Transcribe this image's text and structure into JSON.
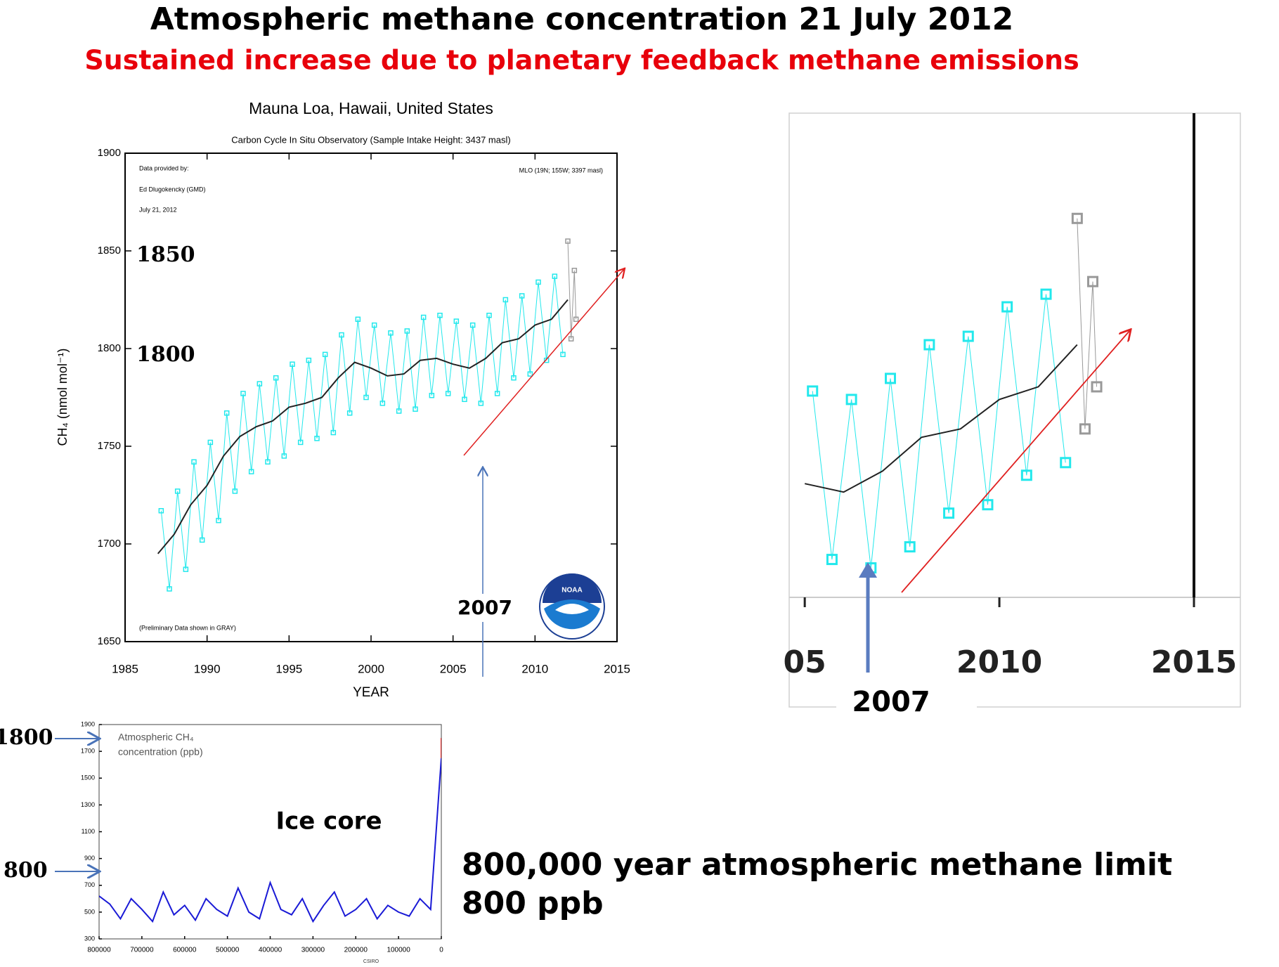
{
  "title": "Atmospheric methane concentration  21 July 2012",
  "subtitle": "Sustained increase due to planetary feedback methane emissions",
  "footer": [
    "800,000 year atmospheric methane limit",
    "800 ppb"
  ],
  "chart_data": [
    {
      "type": "line",
      "title": "Mauna Loa, Hawaii, United States",
      "subtitle": "Carbon Cycle In Situ Observatory (Sample Intake Height: 3437 masl)",
      "notes": [
        "Data provided by:",
        "Ed Dlugokencky (GMD)",
        "July 21, 2012",
        "MLO (19N; 155W; 3397 masl)",
        "(Preliminary Data shown in GRAY)"
      ],
      "annotations": [
        "1850",
        "1800",
        "2007"
      ],
      "xlabel": "YEAR",
      "ylabel": "CH₄ (nmol mol⁻¹)",
      "xlim": [
        1985,
        2015
      ],
      "xticks": [
        1985,
        1990,
        1995,
        2000,
        2005,
        2010,
        2015
      ],
      "ylim": [
        1650,
        1900
      ],
      "yticks": [
        1650,
        1700,
        1750,
        1800,
        1850,
        1900
      ],
      "series": [
        {
          "color": "#22e8ec",
          "mode": "lines+markers",
          "x": [
            1987.2,
            1987.7,
            1988.2,
            1988.7,
            1989.2,
            1989.7,
            1990.2,
            1990.7,
            1991.2,
            1991.7,
            1992.2,
            1992.7,
            1993.2,
            1993.7,
            1994.2,
            1994.7,
            1995.2,
            1995.7,
            1996.2,
            1996.7,
            1997.2,
            1997.7,
            1998.2,
            1998.7,
            1999.2,
            1999.7,
            2000.2,
            2000.7,
            2001.2,
            2001.7,
            2002.2,
            2002.7,
            2003.2,
            2003.7,
            2004.2,
            2004.7,
            2005.2,
            2005.7,
            2006.2,
            2006.7,
            2007.2,
            2007.7,
            2008.2,
            2008.7,
            2009.2,
            2009.7,
            2010.2,
            2010.7,
            2011.2,
            2011.7
          ],
          "values": [
            1717,
            1677,
            1727,
            1687,
            1742,
            1702,
            1752,
            1712,
            1767,
            1727,
            1777,
            1737,
            1782,
            1742,
            1785,
            1745,
            1792,
            1752,
            1794,
            1754,
            1797,
            1757,
            1807,
            1767,
            1815,
            1775,
            1812,
            1772,
            1808,
            1768,
            1809,
            1769,
            1816,
            1776,
            1817,
            1777,
            1814,
            1774,
            1812,
            1772,
            1817,
            1777,
            1825,
            1785,
            1827,
            1787,
            1834,
            1794,
            1837,
            1797
          ]
        },
        {
          "color": "#999999",
          "mode": "lines+markers",
          "x": [
            2012.0,
            2012.2,
            2012.4,
            2012.5
          ],
          "values": [
            1855,
            1805,
            1840,
            1815
          ]
        },
        {
          "color": "#222222",
          "mode": "lines",
          "x": [
            1987,
            1988,
            1989,
            1990,
            1991,
            1992,
            1993,
            1994,
            1995,
            1996,
            1997,
            1998,
            1999,
            2000,
            2001,
            2002,
            2003,
            2004,
            2005,
            2006,
            2007,
            2008,
            2009,
            2010,
            2011,
            2012
          ],
          "values": [
            1695,
            1705,
            1720,
            1730,
            1745,
            1755,
            1760,
            1763,
            1770,
            1772,
            1775,
            1785,
            1793,
            1790,
            1786,
            1787,
            1794,
            1795,
            1792,
            1790,
            1795,
            1803,
            1805,
            1812,
            1815,
            1825
          ]
        }
      ]
    },
    {
      "type": "line",
      "annotations": [
        "2007"
      ],
      "xlim": [
        2004.6,
        2015
      ],
      "xticks": [
        {
          "value": 2005,
          "label": "05"
        },
        2010,
        2015
      ],
      "ylim": [
        1765,
        1880
      ],
      "series": [
        {
          "color": "#22e8ec",
          "mode": "lines+markers",
          "x": [
            2005.2,
            2005.7,
            2006.2,
            2006.7,
            2007.2,
            2007.7,
            2008.2,
            2008.7,
            2009.2,
            2009.7,
            2010.2,
            2010.7,
            2011.2,
            2011.7
          ],
          "values": [
            1814,
            1774,
            1812,
            1772,
            1817,
            1777,
            1825,
            1785,
            1827,
            1787,
            1834,
            1794,
            1837,
            1797
          ]
        },
        {
          "color": "#999999",
          "mode": "lines+markers",
          "x": [
            2012.0,
            2012.2,
            2012.4,
            2012.5
          ],
          "values": [
            1855,
            1805,
            1840,
            1815
          ]
        },
        {
          "color": "#222222",
          "mode": "lines",
          "x": [
            2005,
            2006,
            2007,
            2008,
            2009,
            2010,
            2011,
            2012
          ],
          "values": [
            1792,
            1790,
            1795,
            1803,
            1805,
            1812,
            1815,
            1825
          ]
        }
      ]
    },
    {
      "type": "line",
      "text": [
        "Atmospheric CH₄",
        "concentration (ppb)"
      ],
      "source": "CSIRO",
      "annotations": [
        "Ice core",
        "1800",
        "800"
      ],
      "xlim": [
        800000,
        0
      ],
      "xticks": [
        800000,
        700000,
        600000,
        500000,
        400000,
        300000,
        200000,
        100000,
        0
      ],
      "ylim": [
        300,
        1900
      ],
      "yticks": [
        300,
        500,
        700,
        900,
        1100,
        1300,
        1500,
        1700,
        1900
      ],
      "series": [
        {
          "color": "#1a1ad6",
          "mode": "lines",
          "x": [
            800000,
            775000,
            750000,
            725000,
            700000,
            675000,
            650000,
            625000,
            600000,
            575000,
            550000,
            525000,
            500000,
            475000,
            450000,
            425000,
            400000,
            375000,
            350000,
            325000,
            300000,
            275000,
            250000,
            225000,
            200000,
            175000,
            150000,
            125000,
            100000,
            75000,
            50000,
            25000,
            0
          ],
          "values": [
            620,
            560,
            450,
            600,
            520,
            430,
            650,
            480,
            550,
            440,
            600,
            520,
            470,
            680,
            500,
            450,
            720,
            520,
            480,
            600,
            430,
            550,
            650,
            470,
            520,
            600,
            450,
            550,
            500,
            470,
            600,
            520,
            1650
          ]
        },
        {
          "color": "#e02020",
          "mode": "lines",
          "x": [
            0,
            0
          ],
          "values": [
            1650,
            1800
          ]
        }
      ]
    }
  ]
}
